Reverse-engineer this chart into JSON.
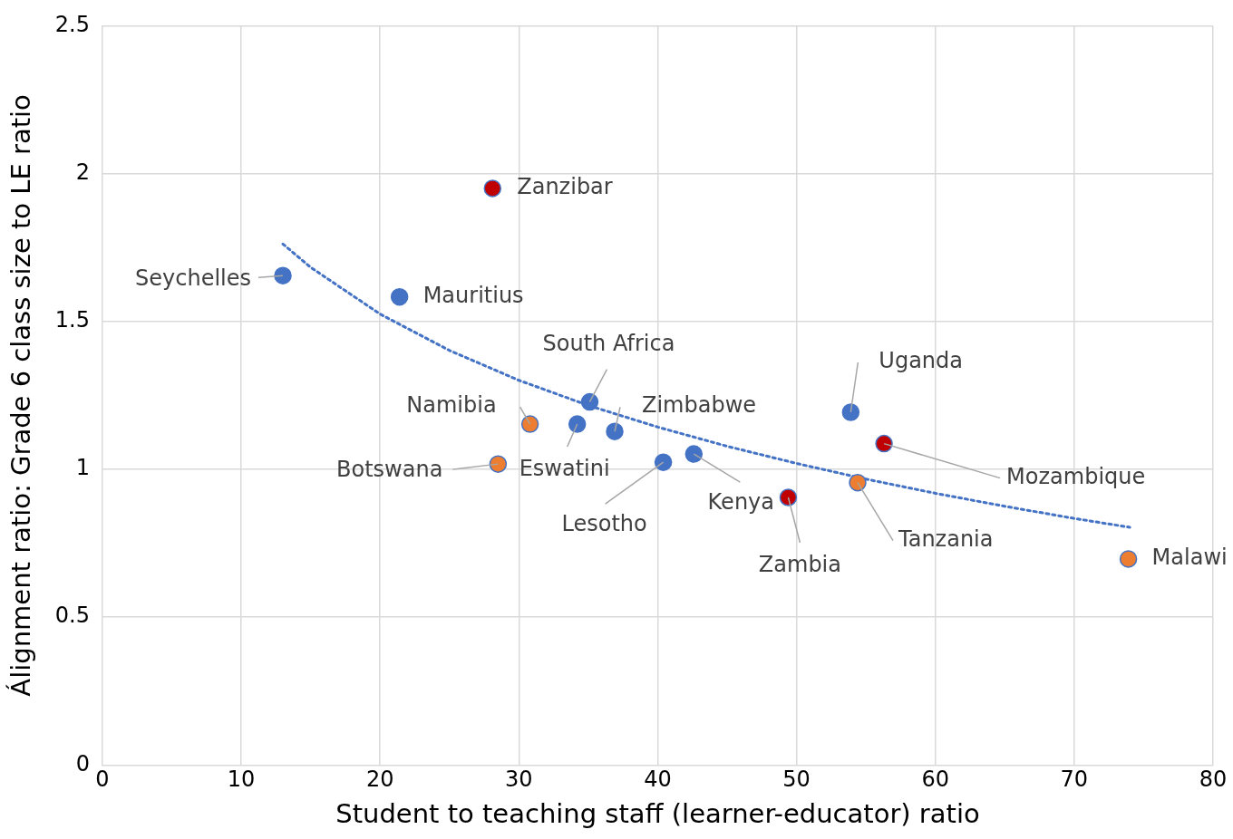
{
  "chart_data": {
    "type": "scatter",
    "xlabel": "Student to teaching staff (learner-educator) ratio",
    "ylabel": "Álignment ratio: Grade 6 class size to LE ratio",
    "xlim": [
      0,
      80
    ],
    "xticks": [
      0,
      10,
      20,
      30,
      40,
      50,
      60,
      70,
      80
    ],
    "ylim": [
      0,
      2.5
    ],
    "yticks": [
      0,
      0.5,
      1,
      1.5,
      2,
      2.5
    ],
    "grid": true,
    "legend": false,
    "marker": "circle",
    "series": [
      {
        "x": [
          13.0,
          21.4,
          28.1,
          35.1,
          30.8,
          34.2,
          36.9,
          28.5,
          40.4,
          42.6,
          49.4,
          53.9,
          56.3,
          54.4,
          73.9
        ],
        "values": [
          1.655,
          1.583,
          1.95,
          1.228,
          1.153,
          1.153,
          1.128,
          1.018,
          1.024,
          1.052,
          0.905,
          1.193,
          1.087,
          0.955,
          0.697
        ],
        "colors": [
          "#4472c4",
          "#4472c4",
          "#c00000",
          "#4472c4",
          "#ed7d31",
          "#4472c4",
          "#4472c4",
          "#ed7d31",
          "#4472c4",
          "#4472c4",
          "#c00000",
          "#4472c4",
          "#c00000",
          "#ed7d31",
          "#ed7d31"
        ]
      },
      {
        "type": "line",
        "x": [
          13,
          15,
          20,
          25,
          30,
          35,
          40,
          45,
          50,
          55,
          60,
          65,
          70,
          74
        ],
        "values": [
          1.762,
          1.683,
          1.525,
          1.402,
          1.301,
          1.216,
          1.143,
          1.078,
          1.02,
          0.967,
          0.919,
          0.875,
          0.834,
          0.804
        ],
        "color": "#4472c4",
        "line_style": "dotted",
        "marker": "none"
      }
    ],
    "annotations": [
      {
        "text": "Seychelles",
        "x": 13.0,
        "y": 1.655
      },
      {
        "text": "Mauritius",
        "x": 21.4,
        "y": 1.583
      },
      {
        "text": "Zanzibar",
        "x": 28.1,
        "y": 1.95
      },
      {
        "text": "South Africa",
        "x": 35.1,
        "y": 1.228
      },
      {
        "text": "Namibia",
        "x": 30.8,
        "y": 1.153
      },
      {
        "text": "Eswatini",
        "x": 34.2,
        "y": 1.153
      },
      {
        "text": "Zimbabwe",
        "x": 36.9,
        "y": 1.128
      },
      {
        "text": "Botswana",
        "x": 28.5,
        "y": 1.018
      },
      {
        "text": "Lesotho",
        "x": 40.4,
        "y": 1.024
      },
      {
        "text": "Kenya",
        "x": 42.6,
        "y": 1.052
      },
      {
        "text": "Zambia",
        "x": 49.4,
        "y": 0.905
      },
      {
        "text": "Uganda",
        "x": 53.9,
        "y": 1.193
      },
      {
        "text": "Mozambique",
        "x": 56.3,
        "y": 1.087
      },
      {
        "text": "Tanzania",
        "x": 54.4,
        "y": 0.955
      },
      {
        "text": "Malawi",
        "x": 73.9,
        "y": 0.697
      }
    ]
  }
}
